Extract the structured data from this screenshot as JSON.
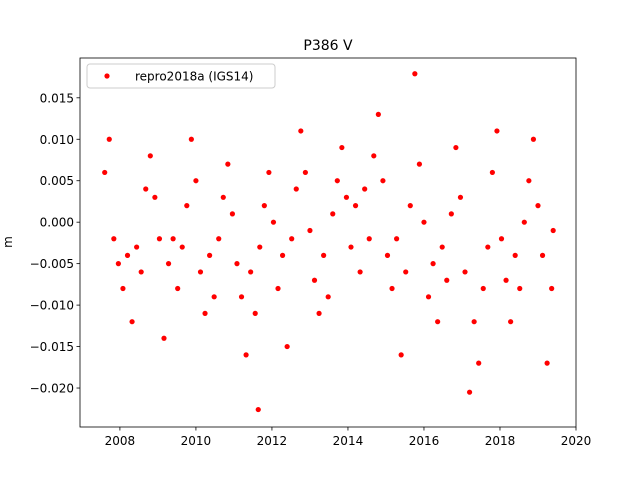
{
  "chart_data": {
    "type": "scatter",
    "title": "P386 V",
    "y_label": "m",
    "legend_position": "upper left",
    "xlim": [
      2006.95,
      2020.0
    ],
    "xticks": [
      2008,
      2010,
      2012,
      2014,
      2016,
      2018,
      2020
    ],
    "ylim": [
      -0.0247,
      0.0198
    ],
    "yticks": [
      {
        "value": -0.02,
        "label": "−0.020"
      },
      {
        "value": -0.015,
        "label": "−0.015"
      },
      {
        "value": -0.01,
        "label": "−0.010"
      },
      {
        "value": -0.005,
        "label": "−0.005"
      },
      {
        "value": 0,
        "label": "0.000"
      },
      {
        "value": 0.005,
        "label": "0.005"
      },
      {
        "value": 0.01,
        "label": "0.010"
      },
      {
        "value": 0.015,
        "label": "0.015"
      }
    ],
    "series": [
      {
        "name": "repro2018a (IGS14)",
        "color": "#ff0000",
        "x": [
          2007.6,
          2007.72,
          2007.84,
          2007.96,
          2008.08,
          2008.2,
          2008.32,
          2008.44,
          2008.56,
          2008.68,
          2008.8,
          2008.92,
          2009.04,
          2009.16,
          2009.28,
          2009.4,
          2009.52,
          2009.64,
          2009.76,
          2009.88,
          2010.0,
          2010.12,
          2010.24,
          2010.36,
          2010.48,
          2010.6,
          2010.72,
          2010.84,
          2010.96,
          2011.08,
          2011.2,
          2011.32,
          2011.44,
          2011.56,
          2011.64,
          2011.68,
          2011.8,
          2011.92,
          2012.04,
          2012.16,
          2012.28,
          2012.4,
          2012.52,
          2012.64,
          2012.76,
          2012.88,
          2013.0,
          2013.12,
          2013.24,
          2013.36,
          2013.48,
          2013.6,
          2013.72,
          2013.84,
          2013.96,
          2014.08,
          2014.2,
          2014.32,
          2014.44,
          2014.56,
          2014.68,
          2014.8,
          2014.92,
          2015.04,
          2015.16,
          2015.28,
          2015.4,
          2015.52,
          2015.64,
          2015.76,
          2015.88,
          2016.0,
          2016.12,
          2016.24,
          2016.36,
          2016.48,
          2016.6,
          2016.72,
          2016.84,
          2016.96,
          2017.08,
          2017.2,
          2017.32,
          2017.44,
          2017.56,
          2017.68,
          2017.8,
          2017.92,
          2018.04,
          2018.16,
          2018.28,
          2018.4,
          2018.52,
          2018.64,
          2018.76,
          2018.88,
          2019.0,
          2019.12,
          2019.24,
          2019.36,
          2019.4
        ],
        "values": [
          0.006,
          0.01,
          -0.002,
          -0.005,
          -0.008,
          -0.004,
          -0.012,
          -0.003,
          -0.006,
          0.004,
          0.008,
          0.003,
          -0.002,
          -0.014,
          -0.005,
          -0.002,
          -0.008,
          -0.003,
          0.002,
          0.01,
          0.005,
          -0.006,
          -0.011,
          -0.004,
          -0.009,
          -0.002,
          0.003,
          0.007,
          0.001,
          -0.005,
          -0.009,
          -0.016,
          -0.006,
          -0.011,
          -0.0226,
          -0.003,
          0.002,
          0.006,
          0.0,
          -0.008,
          -0.004,
          -0.015,
          -0.002,
          0.004,
          0.011,
          0.006,
          -0.001,
          -0.007,
          -0.011,
          -0.004,
          -0.009,
          0.001,
          0.005,
          0.009,
          0.003,
          -0.003,
          0.002,
          -0.006,
          0.004,
          -0.002,
          0.008,
          0.013,
          0.005,
          -0.004,
          -0.008,
          -0.002,
          -0.016,
          -0.006,
          0.002,
          0.0179,
          0.007,
          0.0,
          -0.009,
          -0.005,
          -0.012,
          -0.003,
          -0.007,
          0.001,
          0.009,
          0.003,
          -0.006,
          -0.0205,
          -0.012,
          -0.017,
          -0.008,
          -0.003,
          0.006,
          0.011,
          -0.002,
          -0.007,
          -0.012,
          -0.004,
          -0.008,
          0.0,
          0.005,
          0.01,
          0.002,
          -0.004,
          -0.017,
          -0.008,
          -0.001
        ]
      }
    ]
  }
}
